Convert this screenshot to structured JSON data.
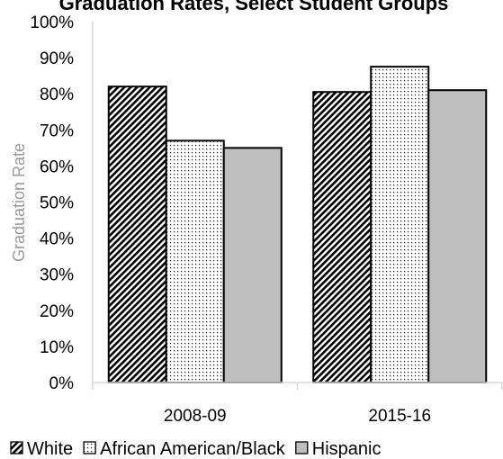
{
  "chart_data": {
    "type": "bar",
    "title": "Graduation Rates, Select Student Groups",
    "xlabel": "",
    "ylabel": "Graduation Rate",
    "categories": [
      "2008-09",
      "2015-16"
    ],
    "series": [
      {
        "name": "White",
        "values": [
          82,
          80.5
        ],
        "pattern": "diagonal-stripes",
        "color": "#000000"
      },
      {
        "name": "African American/Black",
        "values": [
          67,
          87.5
        ],
        "pattern": "dots",
        "color": "#ffffff"
      },
      {
        "name": "Hispanic",
        "values": [
          65,
          81
        ],
        "pattern": "solid",
        "color": "#bfbfbf"
      }
    ],
    "ylim": [
      0,
      100
    ],
    "yticks": [
      "0%",
      "10%",
      "20%",
      "30%",
      "40%",
      "50%",
      "60%",
      "70%",
      "80%",
      "90%",
      "100%"
    ],
    "grid": false,
    "legend_position": "bottom"
  }
}
